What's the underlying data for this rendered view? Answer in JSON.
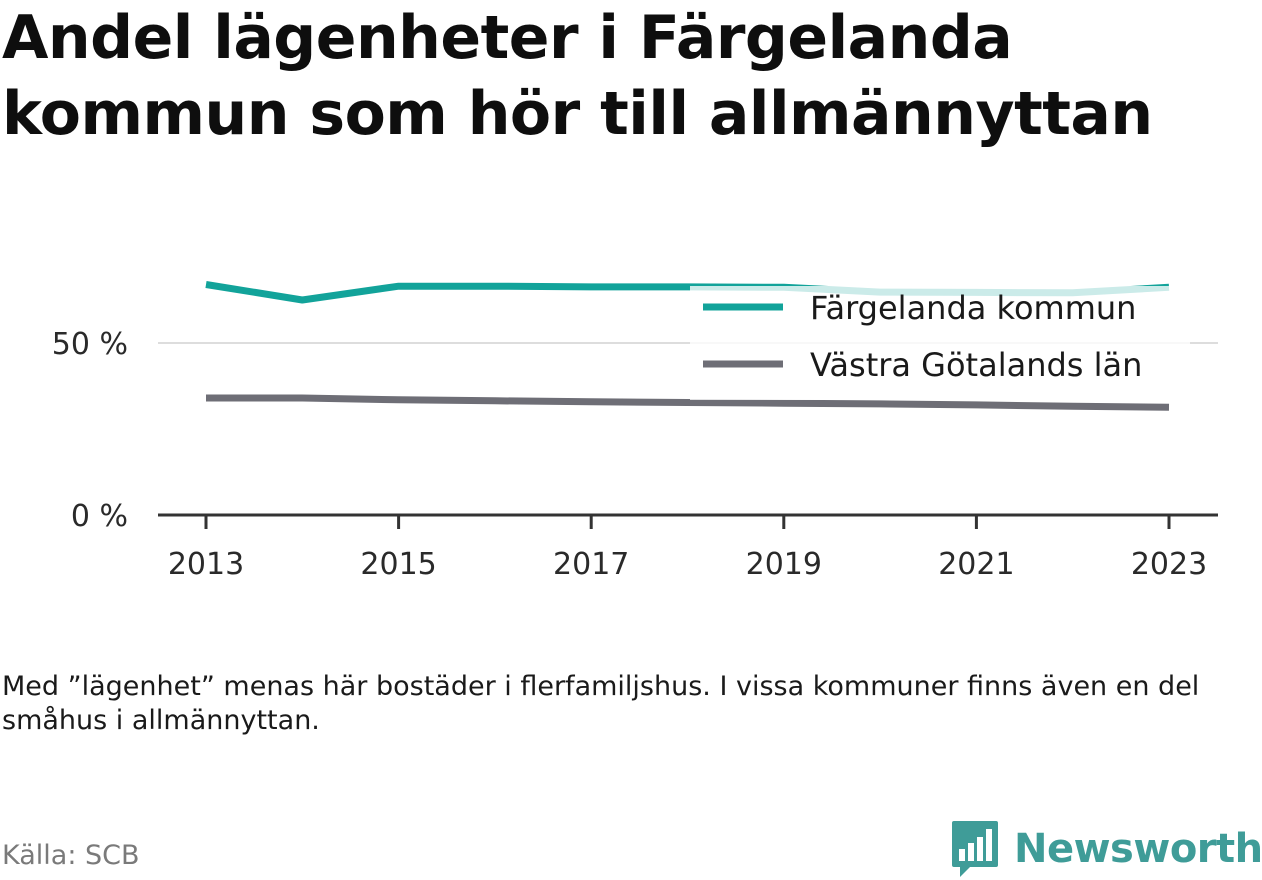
{
  "header": {
    "title": "Andel lägenheter i Färgelanda kommun som hör till allmännyttan"
  },
  "footer": {
    "note": "Med ”lägenhet” menas här bostäder i flerfamiljshus. I vissa kommuner finns även en del småhus i allmännyttan.",
    "source": "Källa: SCB",
    "brand": "Newsworthy"
  },
  "colors": {
    "series_1": "#12a39a",
    "series_2": "#6e6e76",
    "axis": "#333333",
    "grid": "#dddddd",
    "brand": "#3f9c98"
  },
  "icons": {
    "brand_logo": "bar-chart-speech-bubble-icon"
  },
  "chart_data": {
    "type": "line",
    "title": "Andel lägenheter i Färgelanda kommun som hör till allmännyttan",
    "xlabel": "",
    "ylabel": "",
    "x": [
      2013,
      2014,
      2015,
      2016,
      2017,
      2018,
      2019,
      2020,
      2021,
      2022,
      2023
    ],
    "x_ticks": [
      "2013",
      "2015",
      "2017",
      "2019",
      "2021",
      "2023"
    ],
    "y_ticks": [
      "0 %",
      "50 %"
    ],
    "y_tick_values": [
      0,
      50
    ],
    "ylim": [
      0,
      100
    ],
    "grid": "horizontal",
    "legend_position": "top-right",
    "series": [
      {
        "name": "Färgelanda kommun",
        "values": [
          67,
          62.5,
          66.5,
          66.5,
          66.3,
          66.3,
          66.2,
          64.8,
          64.7,
          64.6,
          66.2
        ]
      },
      {
        "name": "Västra Götalands län",
        "values": [
          34,
          34,
          33.5,
          33.2,
          32.9,
          32.7,
          32.5,
          32.3,
          32,
          31.6,
          31.3
        ]
      }
    ]
  }
}
